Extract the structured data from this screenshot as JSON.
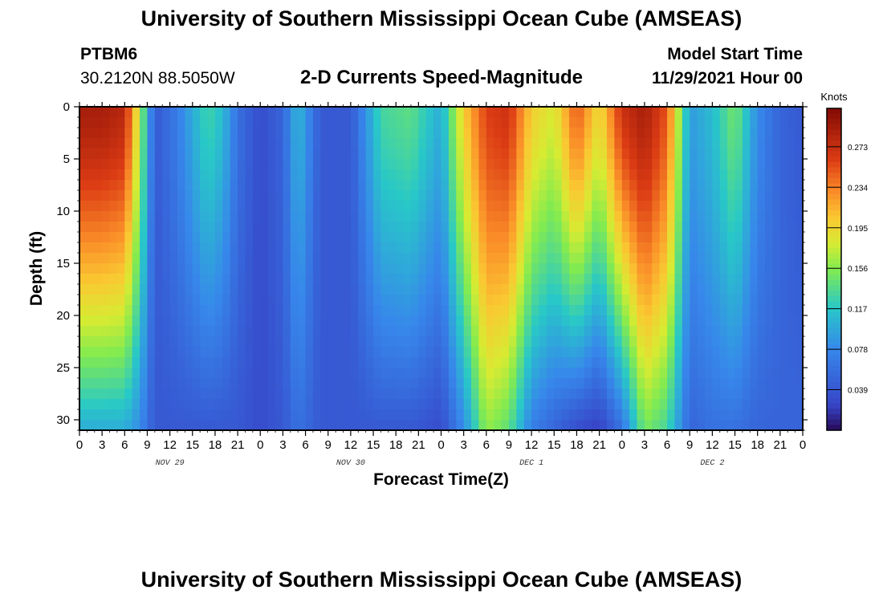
{
  "header": {
    "title_top": "University of Southern Mississippi Ocean Cube (AMSEAS)",
    "title_bottom": "University of Southern Mississippi Ocean Cube (AMSEAS)",
    "station": "PTBM6",
    "coords": "30.2120N  88.5050W",
    "subtitle": "2-D Currents Speed-Magnitude",
    "model_start_label": "Model Start Time",
    "model_start_value": "11/29/2021 Hour 00"
  },
  "chart_data": {
    "type": "heatmap",
    "title": "2-D Currents Speed-Magnitude",
    "xlabel": "Forecast Time(Z)",
    "ylabel": "Depth (ft)",
    "x_range_hours": [
      0,
      96
    ],
    "xlim": [
      0,
      96
    ],
    "ylim": [
      31,
      0
    ],
    "x_ticks": [
      0,
      3,
      6,
      9,
      12,
      15,
      18,
      21,
      24,
      27,
      30,
      33,
      36,
      39,
      42,
      45,
      48,
      51,
      54,
      57,
      60,
      63,
      66,
      69,
      72,
      75,
      78,
      81,
      84,
      87,
      90,
      93,
      96
    ],
    "x_tick_labels": [
      "0",
      "3",
      "6",
      "9",
      "12",
      "15",
      "18",
      "21",
      "0",
      "3",
      "6",
      "9",
      "12",
      "15",
      "18",
      "21",
      "0",
      "3",
      "6",
      "9",
      "12",
      "15",
      "18",
      "21",
      "0",
      "3",
      "6",
      "9",
      "12",
      "15",
      "18",
      "21",
      "0"
    ],
    "date_labels": [
      {
        "text": "NOV 29",
        "hour": 12
      },
      {
        "text": "NOV 30",
        "hour": 36
      },
      {
        "text": "DEC 1",
        "hour": 60
      },
      {
        "text": "DEC 2",
        "hour": 84
      }
    ],
    "y_ticks": [
      0,
      5,
      10,
      15,
      20,
      25,
      30
    ],
    "colorbar": {
      "label": "Knots",
      "ticks": [
        0.039,
        0.078,
        0.117,
        0.156,
        0.195,
        0.234,
        0.273
      ],
      "range": [
        0,
        0.31
      ]
    },
    "profiles": [
      {
        "hour": 0,
        "surface": 0.29,
        "bottom": 0.1
      },
      {
        "hour": 3,
        "surface": 0.29,
        "bottom": 0.1
      },
      {
        "hour": 6,
        "surface": 0.28,
        "bottom": 0.1
      },
      {
        "hour": 8,
        "surface": 0.17,
        "bottom": 0.08
      },
      {
        "hour": 10,
        "surface": 0.04,
        "bottom": 0.04
      },
      {
        "hour": 13,
        "surface": 0.07,
        "bottom": 0.04
      },
      {
        "hour": 17,
        "surface": 0.13,
        "bottom": 0.04
      },
      {
        "hour": 19,
        "surface": 0.11,
        "bottom": 0.04
      },
      {
        "hour": 21,
        "surface": 0.06,
        "bottom": 0.04
      },
      {
        "hour": 24,
        "surface": 0.03,
        "bottom": 0.03
      },
      {
        "hour": 27,
        "surface": 0.05,
        "bottom": 0.04
      },
      {
        "hour": 29,
        "surface": 0.11,
        "bottom": 0.06
      },
      {
        "hour": 32,
        "surface": 0.04,
        "bottom": 0.04
      },
      {
        "hour": 36,
        "surface": 0.04,
        "bottom": 0.04
      },
      {
        "hour": 40,
        "surface": 0.13,
        "bottom": 0.04
      },
      {
        "hour": 44,
        "surface": 0.14,
        "bottom": 0.04
      },
      {
        "hour": 48,
        "surface": 0.1,
        "bottom": 0.03
      },
      {
        "hour": 51,
        "surface": 0.2,
        "bottom": 0.08
      },
      {
        "hour": 54,
        "surface": 0.26,
        "bottom": 0.16
      },
      {
        "hour": 57,
        "surface": 0.27,
        "bottom": 0.14
      },
      {
        "hour": 60,
        "surface": 0.2,
        "bottom": 0.07
      },
      {
        "hour": 63,
        "surface": 0.18,
        "bottom": 0.05
      },
      {
        "hour": 66,
        "surface": 0.25,
        "bottom": 0.03
      },
      {
        "hour": 69,
        "surface": 0.19,
        "bottom": 0.02
      },
      {
        "hour": 72,
        "surface": 0.27,
        "bottom": 0.06
      },
      {
        "hour": 75,
        "surface": 0.29,
        "bottom": 0.15
      },
      {
        "hour": 78,
        "surface": 0.25,
        "bottom": 0.13
      },
      {
        "hour": 81,
        "surface": 0.09,
        "bottom": 0.05
      },
      {
        "hour": 84,
        "surface": 0.11,
        "bottom": 0.06
      },
      {
        "hour": 87,
        "surface": 0.15,
        "bottom": 0.06
      },
      {
        "hour": 90,
        "surface": 0.08,
        "bottom": 0.05
      },
      {
        "hour": 93,
        "surface": 0.05,
        "bottom": 0.05
      },
      {
        "hour": 96,
        "surface": 0.04,
        "bottom": 0.05
      }
    ]
  }
}
